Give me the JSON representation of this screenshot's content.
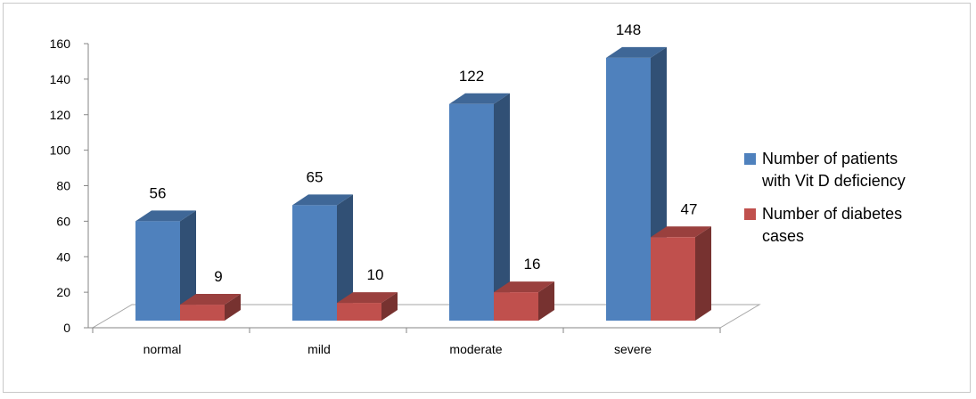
{
  "chart_data": {
    "type": "bar",
    "categories": [
      "normal",
      "mild",
      "moderate",
      "severe"
    ],
    "series": [
      {
        "name": "Number of patients with Vit D deficiency",
        "values": [
          56,
          65,
          122,
          148
        ],
        "color": "#4f81bd"
      },
      {
        "name": "Number of diabetes cases",
        "values": [
          9,
          10,
          16,
          47
        ],
        "color": "#c0504d"
      }
    ],
    "legend": {
      "position": "right",
      "entries": [
        {
          "lines": [
            "Number of patients",
            "with Vit D deficiency"
          ],
          "color": "#4f81bd"
        },
        {
          "lines": [
            "Number of diabetes",
            "cases"
          ],
          "color": "#c0504d"
        }
      ]
    },
    "ylim": [
      0,
      160
    ],
    "yticks": [
      0,
      20,
      40,
      60,
      80,
      100,
      120,
      140,
      160
    ],
    "grid": false,
    "style": "3d-column"
  }
}
